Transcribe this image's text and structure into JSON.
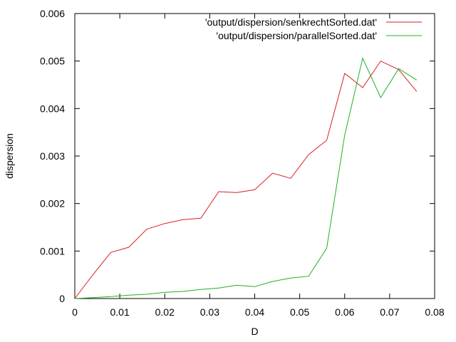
{
  "chart_data": {
    "type": "line",
    "title": "",
    "xlabel": "D",
    "ylabel": "dispersion",
    "xlim": [
      0,
      0.08
    ],
    "ylim": [
      0,
      0.006
    ],
    "grid": false,
    "legend_position": "top-right",
    "x_ticks": [
      "0",
      "0.01",
      "0.02",
      "0.03",
      "0.04",
      "0.05",
      "0.06",
      "0.07",
      "0.08"
    ],
    "y_ticks": [
      "0",
      "0.001",
      "0.002",
      "0.003",
      "0.004",
      "0.005",
      "0.006"
    ],
    "series": [
      {
        "name": "'output/dispersion/senkrechtSorted.dat'",
        "color": "#d62020",
        "x": [
          0,
          0.004,
          0.008,
          0.012,
          0.016,
          0.02,
          0.024,
          0.028,
          0.032,
          0.036,
          0.04,
          0.044,
          0.048,
          0.052,
          0.056,
          0.06,
          0.064,
          0.068,
          0.072,
          0.076
        ],
        "y": [
          0.0,
          0.0005,
          0.00097,
          0.00108,
          0.00146,
          0.00158,
          0.00166,
          0.00169,
          0.00225,
          0.00223,
          0.00229,
          0.00264,
          0.00253,
          0.00303,
          0.00333,
          0.00474,
          0.00444,
          0.005,
          0.00482,
          0.00436
        ]
      },
      {
        "name": "'output/dispersion/parallelSorted.dat'",
        "color": "#20b020",
        "x": [
          0,
          0.004,
          0.008,
          0.012,
          0.016,
          0.02,
          0.024,
          0.028,
          0.032,
          0.036,
          0.04,
          0.044,
          0.048,
          0.052,
          0.056,
          0.06,
          0.064,
          0.068,
          0.072,
          0.076
        ],
        "y": [
          0.0,
          2e-05,
          4e-05,
          7e-05,
          9e-05,
          0.00013,
          0.00015,
          0.00019,
          0.00022,
          0.00028,
          0.00025,
          0.00036,
          0.00043,
          0.00047,
          0.00106,
          0.00344,
          0.00506,
          0.00423,
          0.00484,
          0.0046
        ]
      }
    ]
  }
}
